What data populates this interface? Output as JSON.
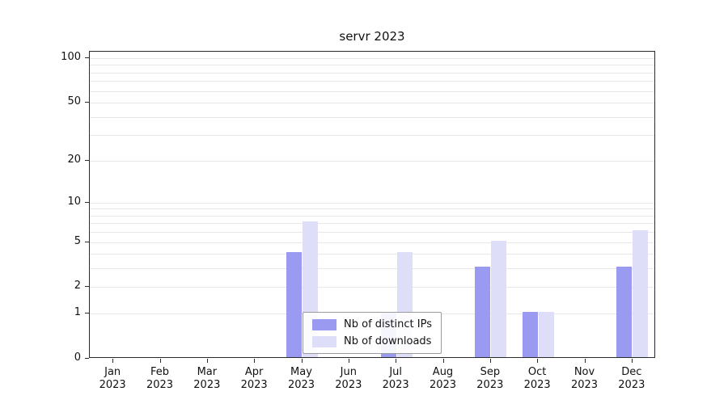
{
  "chart_data": {
    "type": "bar",
    "title": "servr 2023",
    "categories": [
      "Jan",
      "Feb",
      "Mar",
      "Apr",
      "May",
      "Jun",
      "Jul",
      "Aug",
      "Sep",
      "Oct",
      "Nov",
      "Dec"
    ],
    "category_year": "2023",
    "series": [
      {
        "name": "Nb of distinct IPs",
        "color": "#9a9af0",
        "values": [
          0,
          0,
          0,
          0,
          4,
          0,
          1,
          0,
          3,
          1,
          0,
          3
        ]
      },
      {
        "name": "Nb of downloads",
        "color": "#dedef8",
        "values": [
          0,
          0,
          0,
          0,
          7,
          0,
          4,
          0,
          5,
          1,
          0,
          6
        ]
      }
    ],
    "yscale": "log1p",
    "yticks": [
      0,
      1,
      2,
      5,
      10,
      20,
      50,
      100
    ],
    "gridlines": [
      1,
      2,
      3,
      4,
      5,
      6,
      7,
      8,
      9,
      10,
      20,
      30,
      40,
      50,
      60,
      70,
      80,
      90,
      100
    ],
    "ylim_max": 100,
    "xlabel": "",
    "ylabel": "",
    "legend_position": "bottom-center",
    "grid": "horizontal-minor"
  }
}
